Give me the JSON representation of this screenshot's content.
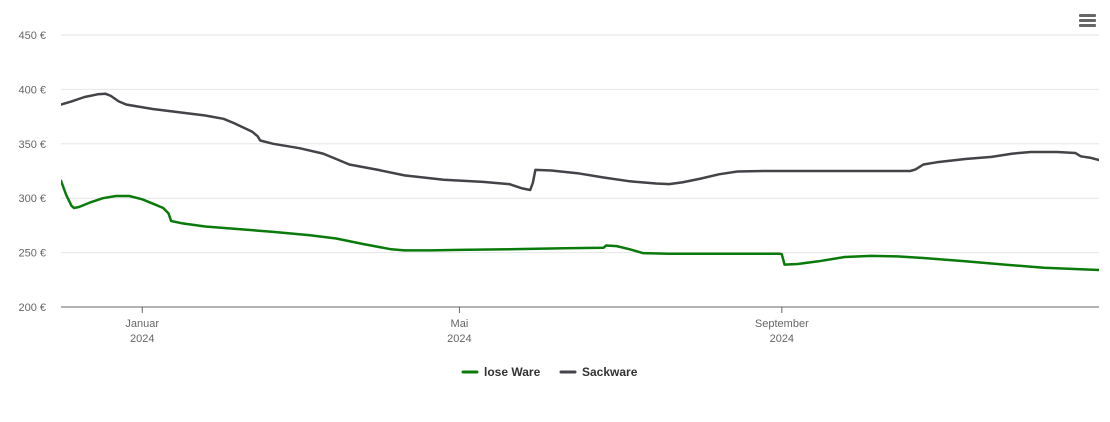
{
  "menu": {
    "icon": "hamburger-menu-icon"
  },
  "chart_data": {
    "type": "line",
    "title": "",
    "xlabel": "",
    "ylabel": "",
    "ylim": [
      200,
      450
    ],
    "y_ticks": [
      "200 €",
      "250 €",
      "300 €",
      "350 €",
      "400 €",
      "450 €"
    ],
    "y_tick_values": [
      200,
      250,
      300,
      350,
      400,
      450
    ],
    "x_range": [
      "2023-12-01",
      "2024-12-31"
    ],
    "x_ticks": [
      {
        "date": "2024-01-01",
        "label": "Januar",
        "year": "2024"
      },
      {
        "date": "2024-05-01",
        "label": "Mai",
        "year": "2024"
      },
      {
        "date": "2024-09-01",
        "label": "September",
        "year": "2024"
      }
    ],
    "grid": true,
    "legend_position": "bottom-center",
    "series": [
      {
        "name": "lose Ware",
        "color": "#0a7a0a",
        "points": [
          [
            "2023-12-01",
            316
          ],
          [
            "2023-12-03",
            303
          ],
          [
            "2023-12-05",
            293
          ],
          [
            "2023-12-06",
            291
          ],
          [
            "2023-12-08",
            292
          ],
          [
            "2023-12-12",
            296
          ],
          [
            "2023-12-17",
            300
          ],
          [
            "2023-12-22",
            302
          ],
          [
            "2023-12-27",
            302
          ],
          [
            "2024-01-01",
            299
          ],
          [
            "2024-01-06",
            294
          ],
          [
            "2024-01-09",
            291
          ],
          [
            "2024-01-11",
            286
          ],
          [
            "2024-01-12",
            279
          ],
          [
            "2024-01-16",
            277
          ],
          [
            "2024-01-25",
            274
          ],
          [
            "2024-02-05",
            272
          ],
          [
            "2024-02-20",
            269
          ],
          [
            "2024-03-05",
            266
          ],
          [
            "2024-03-15",
            263
          ],
          [
            "2024-03-25",
            258
          ],
          [
            "2024-04-05",
            253
          ],
          [
            "2024-04-10",
            252
          ],
          [
            "2024-04-20",
            252
          ],
          [
            "2024-05-01",
            252.5
          ],
          [
            "2024-05-20",
            253
          ],
          [
            "2024-06-10",
            254
          ],
          [
            "2024-06-25",
            254.5
          ],
          [
            "2024-06-26",
            256.5
          ],
          [
            "2024-06-30",
            256
          ],
          [
            "2024-07-05",
            253
          ],
          [
            "2024-07-10",
            249.5
          ],
          [
            "2024-07-20",
            249
          ],
          [
            "2024-08-15",
            249
          ],
          [
            "2024-08-31",
            249
          ],
          [
            "2024-09-01",
            248.5
          ],
          [
            "2024-09-02",
            239
          ],
          [
            "2024-09-07",
            239.5
          ],
          [
            "2024-09-15",
            242
          ],
          [
            "2024-09-25",
            246
          ],
          [
            "2024-10-05",
            247
          ],
          [
            "2024-10-15",
            246.5
          ],
          [
            "2024-10-25",
            245
          ],
          [
            "2024-11-10",
            242
          ],
          [
            "2024-11-25",
            239
          ],
          [
            "2024-12-10",
            236
          ],
          [
            "2024-12-31",
            234
          ]
        ]
      },
      {
        "name": "Sackware",
        "color": "#434348",
        "points": [
          [
            "2023-12-01",
            386
          ],
          [
            "2023-12-05",
            389
          ],
          [
            "2023-12-10",
            393
          ],
          [
            "2023-12-15",
            395.5
          ],
          [
            "2023-12-18",
            396
          ],
          [
            "2023-12-20",
            394
          ],
          [
            "2023-12-23",
            389
          ],
          [
            "2023-12-26",
            386
          ],
          [
            "2024-01-05",
            382
          ],
          [
            "2024-01-15",
            379
          ],
          [
            "2024-01-25",
            376
          ],
          [
            "2024-02-01",
            373
          ],
          [
            "2024-02-05",
            369
          ],
          [
            "2024-02-12",
            361
          ],
          [
            "2024-02-14",
            357
          ],
          [
            "2024-02-15",
            353
          ],
          [
            "2024-02-20",
            350
          ],
          [
            "2024-03-01",
            346
          ],
          [
            "2024-03-10",
            341
          ],
          [
            "2024-03-15",
            336
          ],
          [
            "2024-03-20",
            331
          ],
          [
            "2024-03-31",
            326
          ],
          [
            "2024-04-10",
            321
          ],
          [
            "2024-04-25",
            317
          ],
          [
            "2024-05-10",
            315
          ],
          [
            "2024-05-20",
            313
          ],
          [
            "2024-05-25",
            309
          ],
          [
            "2024-05-28",
            307.5
          ],
          [
            "2024-05-29",
            314
          ],
          [
            "2024-05-30",
            326
          ],
          [
            "2024-06-05",
            325.5
          ],
          [
            "2024-06-15",
            323
          ],
          [
            "2024-06-25",
            319
          ],
          [
            "2024-07-05",
            315.5
          ],
          [
            "2024-07-15",
            313.5
          ],
          [
            "2024-07-20",
            313
          ],
          [
            "2024-07-25",
            314.5
          ],
          [
            "2024-08-01",
            318
          ],
          [
            "2024-08-08",
            322
          ],
          [
            "2024-08-15",
            324.5
          ],
          [
            "2024-08-25",
            325
          ],
          [
            "2024-09-15",
            325
          ],
          [
            "2024-10-10",
            325
          ],
          [
            "2024-10-20",
            325
          ],
          [
            "2024-10-22",
            326.5
          ],
          [
            "2024-10-25",
            331
          ],
          [
            "2024-10-30",
            333
          ],
          [
            "2024-11-10",
            336
          ],
          [
            "2024-11-20",
            338
          ],
          [
            "2024-11-28",
            341
          ],
          [
            "2024-12-05",
            342.5
          ],
          [
            "2024-12-15",
            342.5
          ],
          [
            "2024-12-22",
            341.5
          ],
          [
            "2024-12-24",
            338.5
          ],
          [
            "2024-12-28",
            337
          ],
          [
            "2024-12-31",
            335
          ],
          [
            "2025-01-05",
            332
          ]
        ]
      }
    ]
  }
}
